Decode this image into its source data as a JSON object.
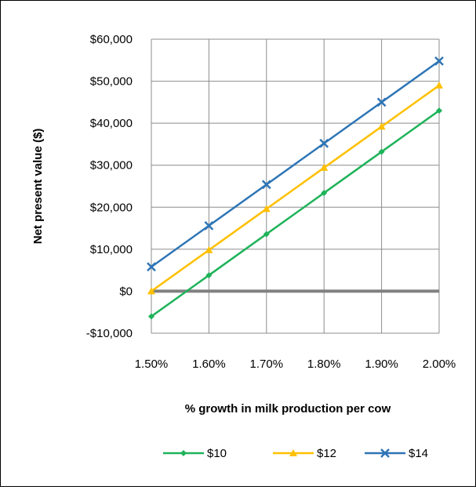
{
  "chart_data": {
    "type": "line",
    "xlabel": "% growth in milk production per cow",
    "ylabel": "Net present value ($)",
    "x": [
      1.5,
      1.6,
      1.7,
      1.8,
      1.9,
      2.0
    ],
    "x_tick_labels": [
      "1.50%",
      "1.60%",
      "1.70%",
      "1.80%",
      "1.90%",
      "2.00%"
    ],
    "ylim": [
      -10000,
      60000
    ],
    "y_ticks": [
      -10000,
      0,
      10000,
      20000,
      30000,
      40000,
      50000,
      60000
    ],
    "y_tick_labels": [
      "-$10,000",
      "$0",
      "$10,000",
      "$20,000",
      "$30,000",
      "$40,000",
      "$50,000",
      "$60,000"
    ],
    "grid": true,
    "legend_position": "bottom",
    "zero_line_color": "#808080",
    "series": [
      {
        "name": "$10",
        "color": "#1FB35A",
        "marker": "diamond",
        "values": [
          -6000,
          3800,
          13600,
          23400,
          33200,
          43000
        ]
      },
      {
        "name": "$12",
        "color": "#FFC000",
        "marker": "triangle",
        "values": [
          0,
          9800,
          19600,
          29400,
          39200,
          49000
        ]
      },
      {
        "name": "$14",
        "color": "#2E75B6",
        "marker": "x",
        "values": [
          5800,
          15600,
          25400,
          35200,
          45000,
          54800
        ]
      }
    ]
  }
}
